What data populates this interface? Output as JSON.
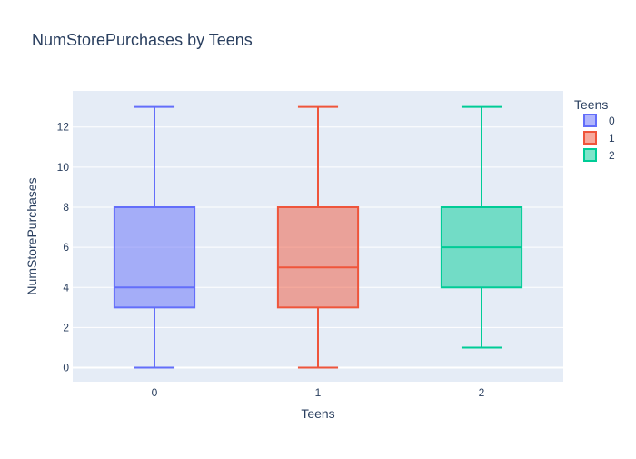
{
  "chart_data": {
    "type": "box",
    "title": "NumStorePurchases by Teens",
    "xlabel": "Teens",
    "ylabel": "NumStorePurchases",
    "categories": [
      "0",
      "1",
      "2"
    ],
    "ylim": [
      -0.7,
      13.8
    ],
    "yticks": [
      0,
      2,
      4,
      6,
      8,
      10,
      12
    ],
    "grid": true,
    "legend": {
      "title": "Teens",
      "placement": "top-right"
    },
    "series": [
      {
        "name": "0",
        "color": "#636efa",
        "fill": "rgba(99,110,250,0.5)",
        "min": 0,
        "q1": 3,
        "median": 4,
        "q3": 8,
        "max": 13
      },
      {
        "name": "1",
        "color": "#ef553b",
        "fill": "rgba(239,85,59,0.5)",
        "min": 0,
        "q1": 3,
        "median": 5,
        "q3": 8,
        "max": 13
      },
      {
        "name": "2",
        "color": "#00cc96",
        "fill": "rgba(0,204,150,0.5)",
        "min": 1,
        "q1": 4,
        "median": 6,
        "q3": 8,
        "max": 13
      }
    ]
  }
}
